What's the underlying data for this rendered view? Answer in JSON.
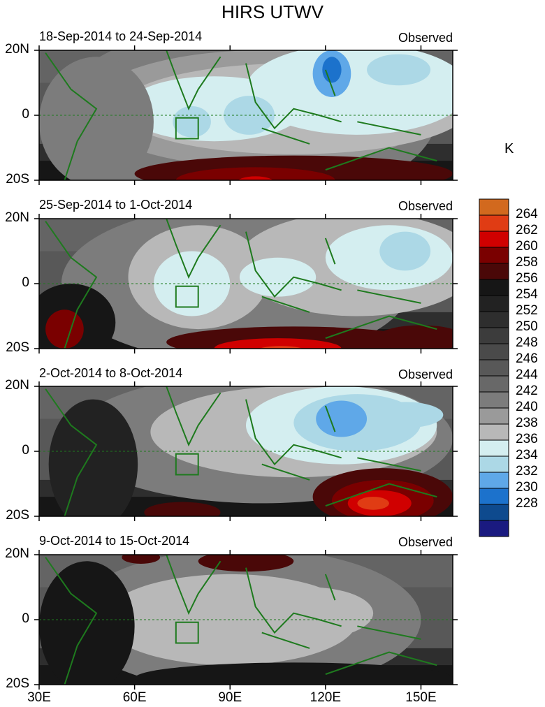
{
  "title": "HIRS UTWV",
  "unit": "K",
  "colorbar": {
    "labels": [
      "264",
      "262",
      "260",
      "258",
      "256",
      "254",
      "252",
      "250",
      "248",
      "246",
      "244",
      "242",
      "240",
      "238",
      "236",
      "234",
      "232",
      "230",
      "228"
    ],
    "colors": [
      "#d2691e",
      "#e03c14",
      "#d00000",
      "#7a0000",
      "#4a0808",
      "#161616",
      "#222222",
      "#2e2e2e",
      "#3c3c3c",
      "#4a4a4a",
      "#585858",
      "#686868",
      "#7c7c7c",
      "#9a9a9a",
      "#b8b8b8",
      "#d4eef0",
      "#acd8e6",
      "#5fa8e8",
      "#1c72cc",
      "#0e4a8e",
      "#1a1a80"
    ]
  },
  "axes": {
    "lat_ticks": [
      "20N",
      "0",
      "20S"
    ],
    "lon_ticks": [
      "30E",
      "60E",
      "90E",
      "120E",
      "150E"
    ]
  },
  "chart_data": [
    {
      "type": "heatmap",
      "period": "18-Sep-2014 to 24-Sep-2014",
      "label": "Observed",
      "xlim": [
        30,
        160
      ],
      "ylim": [
        -20,
        20
      ],
      "contour_levels_K": [
        228,
        230,
        232,
        234,
        236,
        238,
        240,
        242,
        244,
        246,
        248,
        250,
        252,
        254,
        256,
        258,
        260,
        262,
        264
      ],
      "features": [
        {
          "region": "equatorial Indian Ocean / Bay of Bengal",
          "approx_K": 234
        },
        {
          "region": "Philippine Sea near 125E 13N",
          "approx_K": 230
        },
        {
          "region": "south of 12S, 90E-130E",
          "approx_K": 260
        }
      ]
    },
    {
      "type": "heatmap",
      "period": "25-Sep-2014 to 1-Oct-2014",
      "label": "Observed",
      "xlim": [
        30,
        160
      ],
      "ylim": [
        -20,
        20
      ],
      "features": [
        {
          "region": "central Indian Ocean 75E 3S",
          "approx_K": 234
        },
        {
          "region": "western Pacific 145E 10N",
          "approx_K": 232
        },
        {
          "region": "south of 14S, 95E-120E",
          "approx_K": 262
        }
      ]
    },
    {
      "type": "heatmap",
      "period": "2-Oct-2014 to 8-Oct-2014",
      "label": "Observed",
      "xlim": [
        30,
        160
      ],
      "ylim": [
        -20,
        20
      ],
      "features": [
        {
          "region": "South China Sea / Philippines 125E 10N",
          "approx_K": 230
        },
        {
          "region": "north of Australia 135E 16S",
          "approx_K": 262
        }
      ]
    },
    {
      "type": "heatmap",
      "period": "9-Oct-2014 to 15-Oct-2014",
      "label": "Observed",
      "xlim": [
        30,
        160
      ],
      "ylim": [
        -20,
        20
      ],
      "features": [
        {
          "region": "Indian Ocean to Maritime Continent",
          "approx_K": 236
        },
        {
          "region": "northern Bay of Bengal 95E 19N",
          "approx_K": 258
        }
      ]
    }
  ]
}
